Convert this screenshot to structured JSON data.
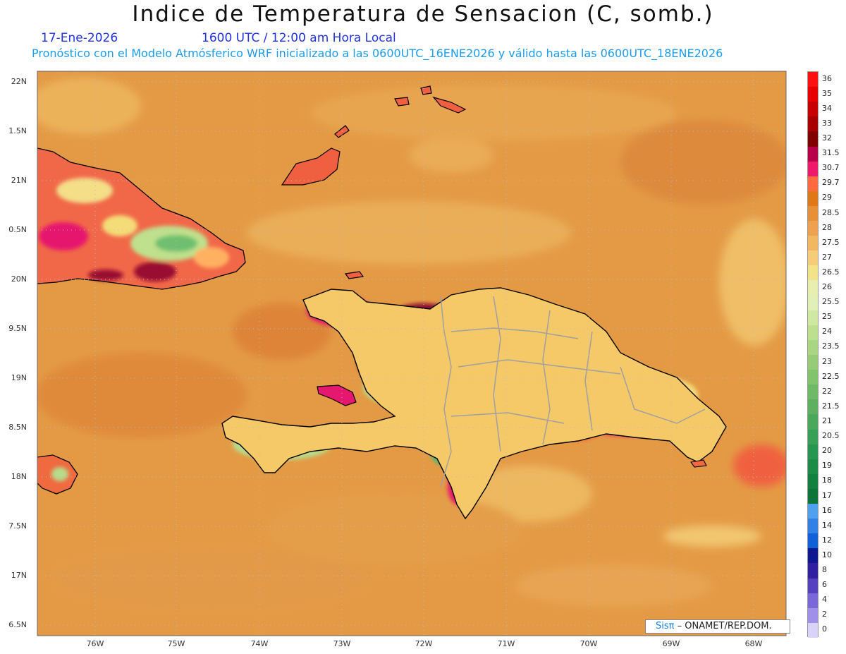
{
  "header": {
    "title": "Indice de Temperatura de Sensacion (C, somb.)",
    "date": "17-Ene-2026",
    "time": "1600 UTC / 12:00 am Hora Local",
    "subtitle": "Pronóstico con el Modelo Atmósferico WRF inicializado a las 0600UTC_16ENE2026 y válido hasta las  0600UTC_18ENE2026"
  },
  "map": {
    "region": "Hispaniola",
    "lat_labels": [
      "22N",
      "1.5N",
      "21N",
      "0.5N",
      "20N",
      "9.5N",
      "19N",
      "8.5N",
      "18N",
      "7.5N",
      "17N",
      "6.5N"
    ],
    "lon_labels": [
      "76W",
      "75W",
      "74W",
      "73W",
      "72W",
      "71W",
      "70W",
      "69W",
      "68W"
    ],
    "colors": {
      "ocean_base": "#e49a45",
      "ocean_light": "#edb560",
      "ocean_dark": "#dd8636",
      "land_hot": "#e6176e",
      "land_very_hot": "#8b0a32",
      "land_warm": "#f26a3c",
      "land_mild": "#f4dc78",
      "land_green_light": "#b8dc8a",
      "land_green": "#4fb86a",
      "land_cool_blue": "#3a7fe0",
      "coastline": "#000000",
      "borders": "#a0a0a0"
    }
  },
  "legend": {
    "labels": [
      "36",
      "35",
      "34",
      "33",
      "32",
      "31.5",
      "30.7",
      "29.7",
      "29",
      "28.5",
      "28",
      "27.5",
      "27",
      "26.5",
      "26",
      "25.5",
      "25",
      "24",
      "23.5",
      "23",
      "22.5",
      "22",
      "21.5",
      "21",
      "20.5",
      "20",
      "19",
      "18",
      "17",
      "16",
      "14",
      "12",
      "10",
      "8",
      "6",
      "4",
      "2",
      "0"
    ],
    "colors": [
      "#ff1010",
      "#e80000",
      "#c80000",
      "#a80000",
      "#800000",
      "#b8004a",
      "#f0186a",
      "#ff6a40",
      "#e07818",
      "#e89038",
      "#eea250",
      "#f2b860",
      "#f6cc78",
      "#f2e288",
      "#e8eeb0",
      "#e0f0b8",
      "#cfe8a2",
      "#bde08f",
      "#a9d682",
      "#96cc78",
      "#82c46e",
      "#6fba66",
      "#5cb060",
      "#4aa85a",
      "#38a054",
      "#27964e",
      "#1a8c46",
      "#12803e",
      "#0c7438",
      "#50a0f0",
      "#3080e8",
      "#1060d8",
      "#101890",
      "#3020a0",
      "#5540c0",
      "#7a68d8",
      "#a090ea",
      "#d8d4f8"
    ]
  },
  "credit": {
    "logo": "Sisπ",
    "org": " – ONAMET/REP.DOM."
  }
}
